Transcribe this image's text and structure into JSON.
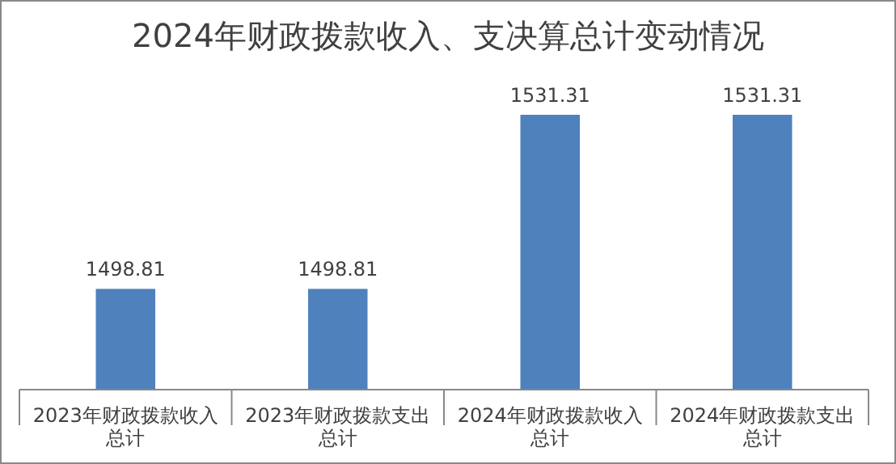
{
  "chart_data": {
    "type": "bar",
    "title": "2024年财政拨款收入、支决算总计变动情况",
    "categories": [
      "2023年财政拨款收入总计",
      "2023年财政拨款支出总计",
      "2024年财政拨款收入总计",
      "2024年财政拨款支出总计"
    ],
    "values": [
      1498.81,
      1498.81,
      1531.31,
      1531.31
    ],
    "color": "#4f81bd",
    "ylim": [
      1480,
      1531.31
    ],
    "data_labels": true,
    "tick_labels": "x"
  }
}
